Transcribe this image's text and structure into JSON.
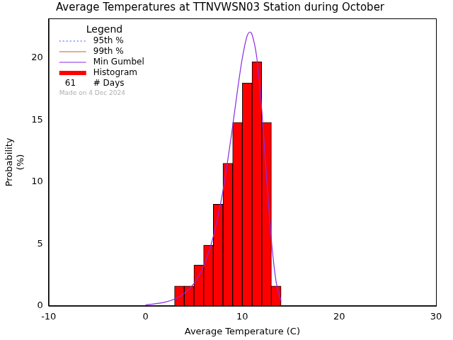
{
  "chart_data": {
    "type": "histogram",
    "title": "Average Temperatures at TTNVWSN03 Station during October",
    "xlabel": "Average Temperature (C)",
    "ylabel": [
      "Probability",
      "(%)"
    ],
    "xlim": [
      -10,
      30
    ],
    "xticks": [
      -10,
      0,
      10,
      20,
      30
    ],
    "ylim": [
      0,
      23.2
    ],
    "yticks": [
      0,
      5,
      10,
      15,
      20
    ],
    "grid": false,
    "legend": "upper left",
    "legend_title": "Legend",
    "series": [
      {
        "name": "95th %",
        "type": "line",
        "color": "#3050ff",
        "line_style": "dotted",
        "x": [],
        "values": []
      },
      {
        "name": "99th %",
        "type": "line",
        "color": "#c0602a",
        "line_style": "solid",
        "x": [],
        "values": []
      },
      {
        "name": "Min Gumbel",
        "type": "line",
        "color": "#8a2be2",
        "line_style": "solid",
        "x": [
          0,
          1,
          2,
          3,
          4,
          5,
          6,
          7,
          8,
          9,
          9.5,
          10,
          10.5,
          10.8,
          11,
          11.5,
          12,
          12.5,
          13,
          13.5,
          14
        ],
        "values": [
          0.09,
          0.17,
          0.3,
          0.55,
          1.0,
          1.8,
          3.2,
          5.6,
          9.3,
          14.5,
          17.4,
          20.0,
          21.8,
          22.1,
          21.9,
          20.0,
          15.9,
          10.4,
          5.3,
          1.9,
          0.4
        ]
      },
      {
        "name": "Histogram",
        "type": "bar",
        "color": "#ff0000",
        "bins": [
          3,
          4,
          5,
          6,
          7,
          8,
          9,
          10,
          11,
          12,
          13,
          14
        ],
        "values": [
          1.6,
          1.6,
          3.3,
          4.9,
          8.2,
          11.5,
          14.8,
          18.0,
          19.7,
          14.8,
          1.6
        ]
      }
    ],
    "days": {
      "value": 61,
      "label": "# Days"
    },
    "annotations": [
      "Made on 4 Dec 2024"
    ]
  }
}
